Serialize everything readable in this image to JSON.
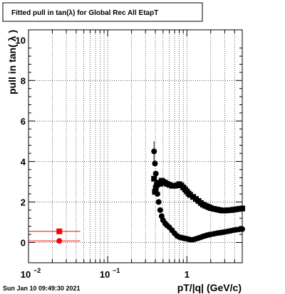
{
  "title": "Fitted pull in tan(λ) for Global Rec All EtapT",
  "timestamp": "Sun Jan 10 09:49:30 2021",
  "chart_data": {
    "type": "scatter",
    "title": "Fitted pull in tan(λ) for Global Rec All EtapT",
    "xlabel": "pT/|q| (GeV/c)",
    "ylabel": "pull in tan( λ )",
    "x_scale": "log",
    "xlim": [
      0.01,
      5.0
    ],
    "ylim": [
      -1.0,
      10.5
    ],
    "grid": true,
    "x_ticks": [
      {
        "value": 0.01,
        "base": "10",
        "exp": "−2"
      },
      {
        "value": 0.1,
        "base": "10",
        "exp": "−1"
      },
      {
        "value": 1,
        "base": "1",
        "exp": ""
      }
    ],
    "y_ticks": [
      0,
      2,
      4,
      6,
      8,
      10
    ],
    "series": [
      {
        "marker": "square",
        "color": "#000000",
        "points": [
          [
            0.385,
            3.15
          ],
          [
            0.395,
            2.5
          ],
          [
            0.405,
            2.7
          ],
          [
            0.42,
            2.85
          ],
          [
            0.44,
            2.95
          ],
          [
            0.46,
            2.9
          ],
          [
            0.48,
            3.05
          ],
          [
            0.5,
            3.0
          ],
          [
            0.53,
            2.95
          ],
          [
            0.56,
            2.9
          ],
          [
            0.6,
            2.85
          ],
          [
            0.65,
            2.8
          ],
          [
            0.7,
            2.8
          ],
          [
            0.75,
            2.82
          ],
          [
            0.8,
            2.88
          ],
          [
            0.85,
            2.82
          ],
          [
            0.9,
            2.72
          ],
          [
            0.95,
            2.62
          ],
          [
            1.0,
            2.52
          ],
          [
            1.05,
            2.42
          ],
          [
            1.1,
            2.35
          ],
          [
            1.2,
            2.25
          ],
          [
            1.3,
            2.15
          ],
          [
            1.4,
            2.05
          ],
          [
            1.5,
            1.95
          ],
          [
            1.6,
            1.87
          ],
          [
            1.7,
            1.82
          ],
          [
            1.8,
            1.78
          ],
          [
            1.9,
            1.74
          ],
          [
            2.0,
            1.7
          ],
          [
            2.2,
            1.66
          ],
          [
            2.4,
            1.63
          ],
          [
            2.6,
            1.6
          ],
          [
            2.8,
            1.58
          ],
          [
            3.0,
            1.58
          ],
          [
            3.3,
            1.59
          ],
          [
            3.6,
            1.6
          ],
          [
            3.9,
            1.62
          ],
          [
            4.2,
            1.64
          ],
          [
            4.6,
            1.66
          ],
          [
            5.0,
            1.68
          ]
        ]
      },
      {
        "marker": "circle",
        "color": "#000000",
        "points": [
          [
            0.385,
            4.5
          ],
          [
            0.395,
            3.9
          ],
          [
            0.405,
            3.4
          ],
          [
            0.415,
            2.9
          ],
          [
            0.425,
            2.4
          ],
          [
            0.44,
            2.0
          ],
          [
            0.46,
            1.6
          ],
          [
            0.48,
            1.3
          ],
          [
            0.5,
            1.1
          ],
          [
            0.53,
            0.95
          ],
          [
            0.56,
            0.85
          ],
          [
            0.6,
            0.75
          ],
          [
            0.65,
            0.6
          ],
          [
            0.7,
            0.45
          ],
          [
            0.75,
            0.33
          ],
          [
            0.8,
            0.27
          ],
          [
            0.85,
            0.24
          ],
          [
            0.9,
            0.22
          ],
          [
            0.95,
            0.2
          ],
          [
            1.0,
            0.18
          ],
          [
            1.05,
            0.16
          ],
          [
            1.1,
            0.14
          ],
          [
            1.2,
            0.14
          ],
          [
            1.3,
            0.18
          ],
          [
            1.4,
            0.22
          ],
          [
            1.5,
            0.26
          ],
          [
            1.6,
            0.3
          ],
          [
            1.7,
            0.33
          ],
          [
            1.8,
            0.36
          ],
          [
            1.9,
            0.38
          ],
          [
            2.0,
            0.4
          ],
          [
            2.2,
            0.43
          ],
          [
            2.4,
            0.46
          ],
          [
            2.6,
            0.48
          ],
          [
            2.8,
            0.5
          ],
          [
            3.0,
            0.52
          ],
          [
            3.3,
            0.55
          ],
          [
            3.6,
            0.58
          ],
          [
            3.9,
            0.61
          ],
          [
            4.2,
            0.63
          ],
          [
            4.6,
            0.65
          ],
          [
            5.0,
            0.66
          ]
        ]
      },
      {
        "marker": "square",
        "color": "#ff0000",
        "points": [
          [
            0.0245,
            0.55
          ]
        ],
        "x_error": [
          [
            0.01,
            0.045
          ]
        ]
      },
      {
        "marker": "circle",
        "color": "#ff0000",
        "points": [
          [
            0.0245,
            0.08
          ]
        ],
        "x_error": [
          [
            0.01,
            0.045
          ]
        ]
      }
    ],
    "error_bars": [
      {
        "x": 0.385,
        "y_low": 3.9,
        "y_high": 5.0
      }
    ]
  }
}
